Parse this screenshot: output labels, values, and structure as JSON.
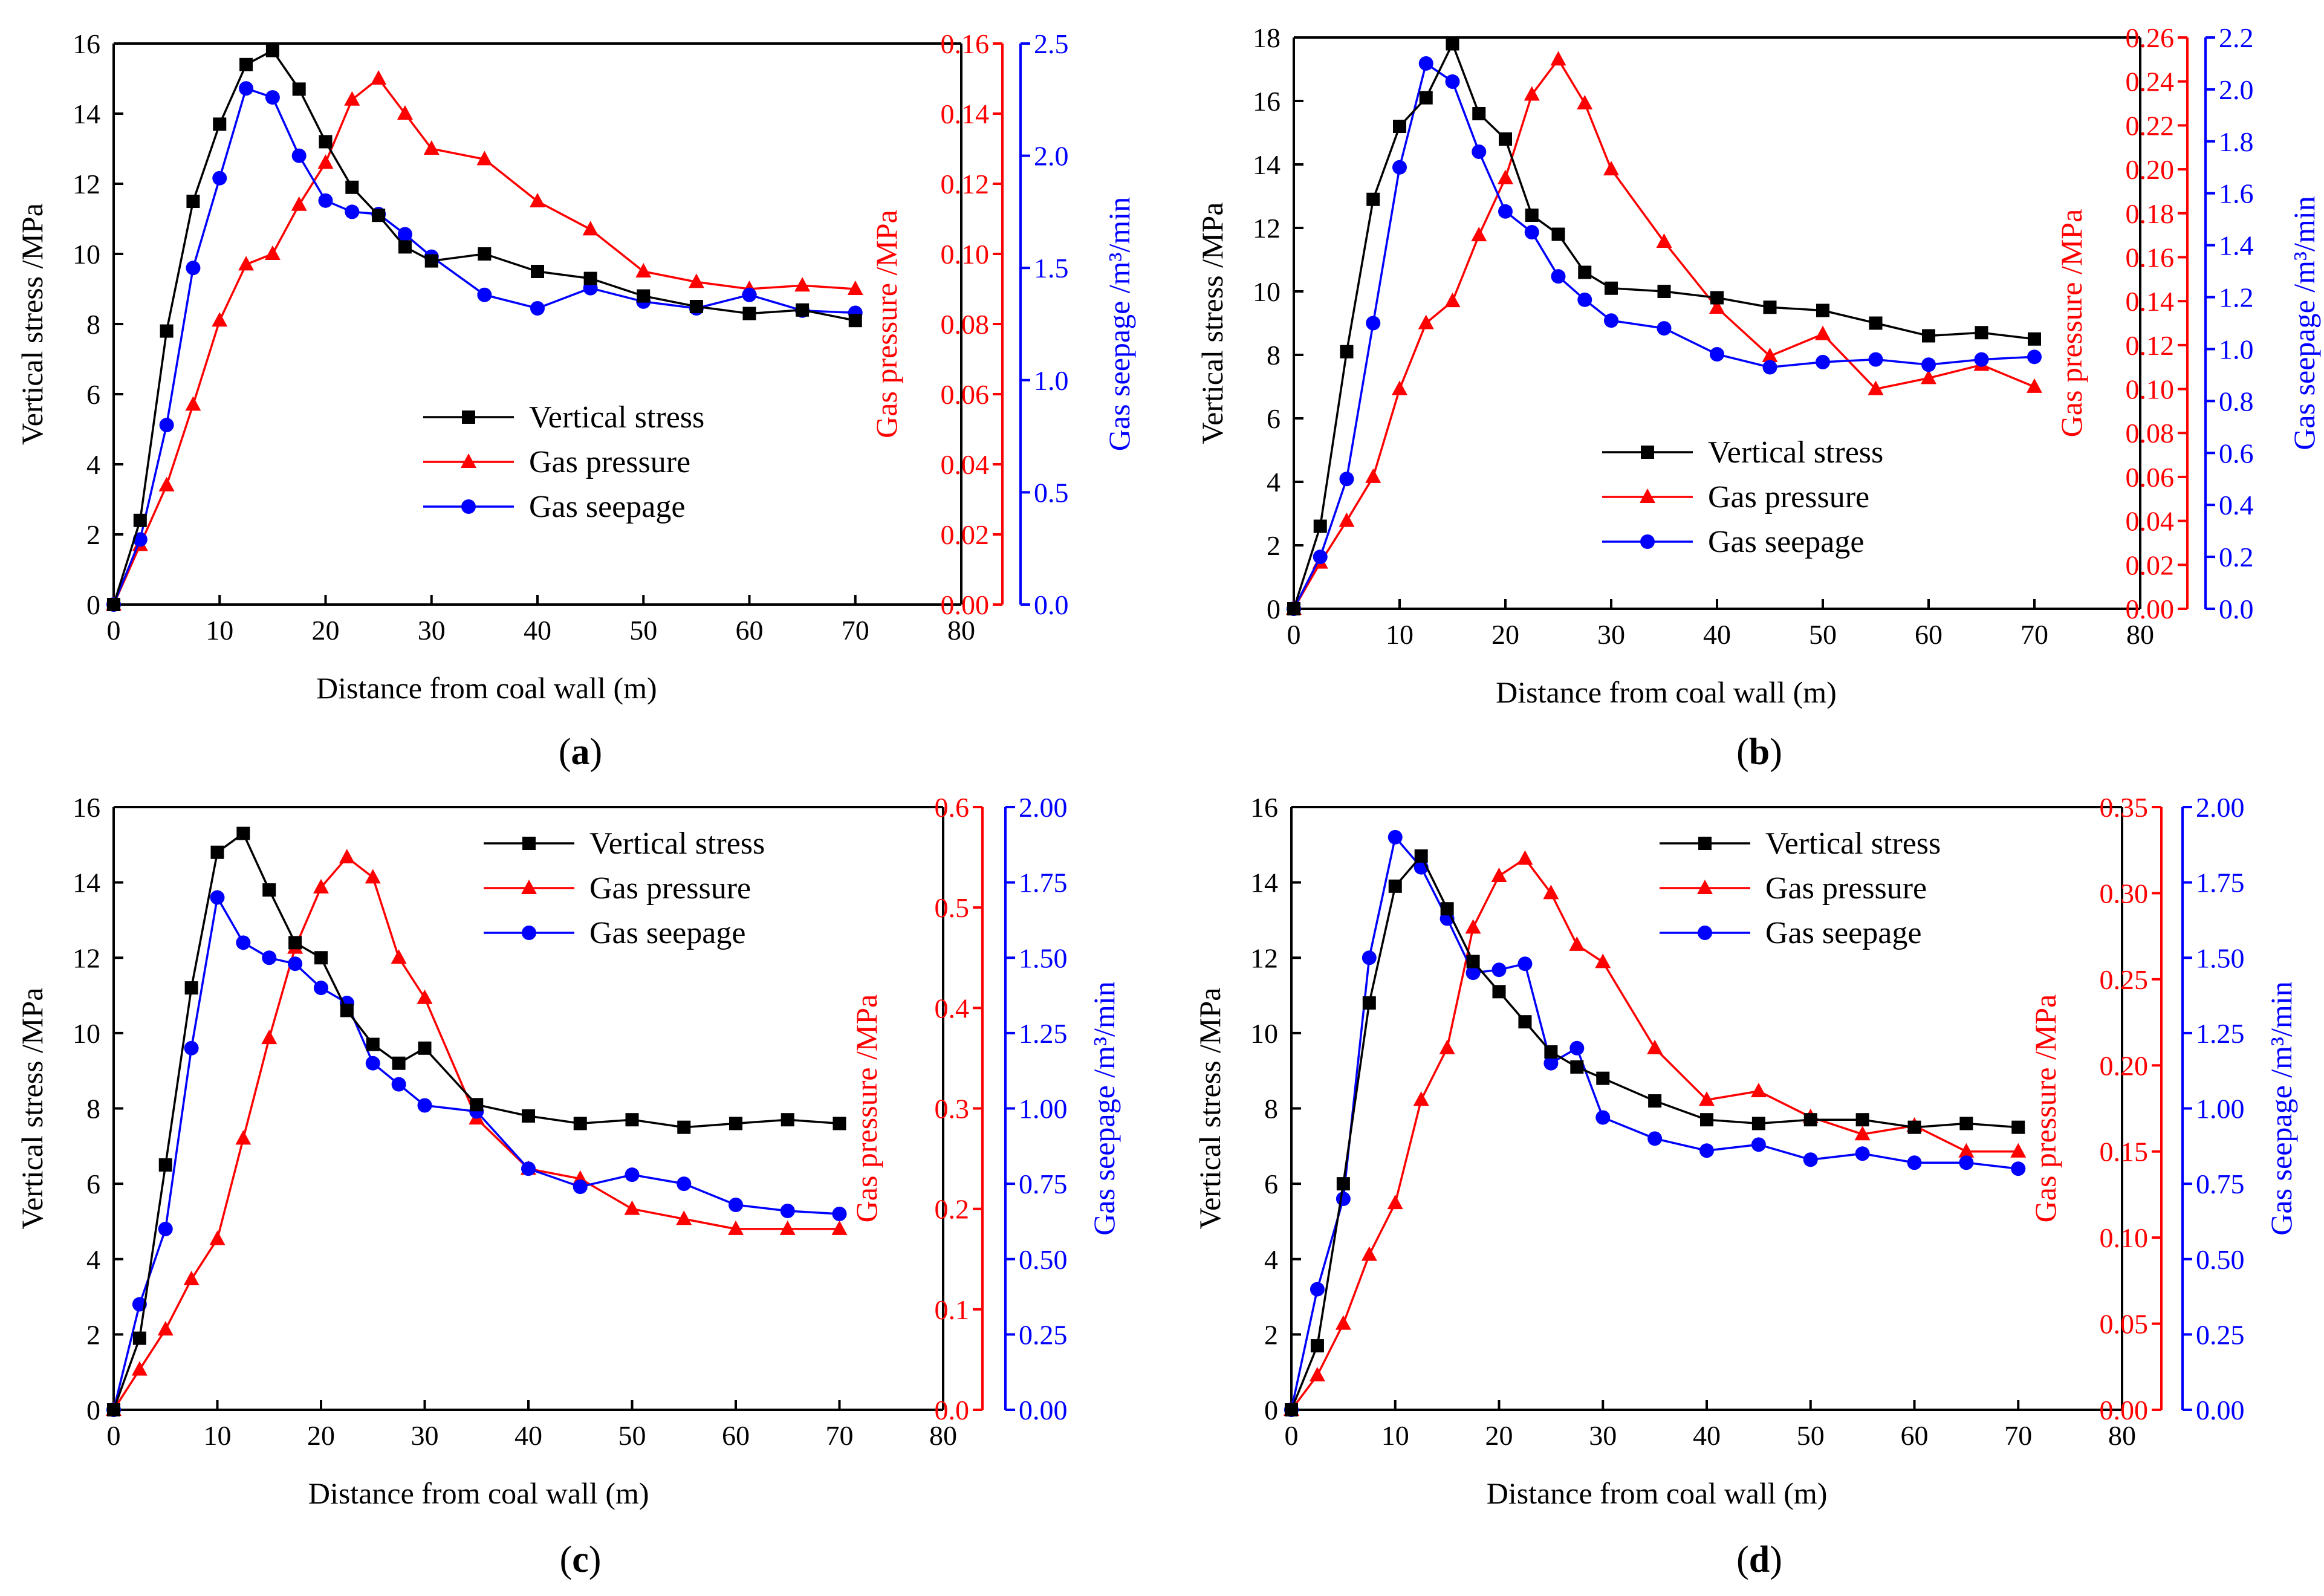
{
  "figure": {
    "panel_count": 4
  },
  "colors": {
    "stress": "#000000",
    "pressure": "#ff0000",
    "seepage": "#0000ff"
  },
  "chart_data": [
    {
      "type": "line",
      "panel_label": "a",
      "xlabel": "Distance from coal wall (m)",
      "ylabel_left": "Vertical stress /MPa",
      "ylabel_right1": "Gas pressure /MPa",
      "ylabel_right2": "Gas seepage /m³/min",
      "xlim": [
        0,
        80
      ],
      "xticks": [
        "0",
        "10",
        "20",
        "30",
        "40",
        "50",
        "60",
        "70",
        "80"
      ],
      "ylim_left": [
        0,
        16
      ],
      "yticks_left": [
        "0",
        "2",
        "4",
        "6",
        "8",
        "10",
        "12",
        "14",
        "16"
      ],
      "ylim_right1": [
        0,
        0.16
      ],
      "yticks_right1": [
        "0.00",
        "0.02",
        "0.04",
        "0.06",
        "0.08",
        "0.10",
        "0.12",
        "0.14",
        "0.16"
      ],
      "ylim_right2": [
        0,
        2.5
      ],
      "yticks_right2": [
        "0.0",
        "0.5",
        "1.0",
        "1.5",
        "2.0",
        "2.5"
      ],
      "legend_position": "center",
      "series": [
        {
          "name": "Vertical stress",
          "axis": "left",
          "marker": "square",
          "x": [
            0,
            2.5,
            5,
            7.5,
            10,
            12.5,
            15,
            17.5,
            20,
            22.5,
            25,
            27.5,
            30,
            35,
            40,
            45,
            50,
            55,
            60,
            65,
            70
          ],
          "values": [
            0,
            2.4,
            7.8,
            11.5,
            13.7,
            15.4,
            15.8,
            14.7,
            13.2,
            11.9,
            11.1,
            10.2,
            9.8,
            10.0,
            9.5,
            9.3,
            8.8,
            8.5,
            8.3,
            8.4,
            8.1
          ]
        },
        {
          "name": "Gas pressure",
          "axis": "right1",
          "marker": "triangle",
          "x": [
            0,
            2.5,
            5,
            7.5,
            10,
            12.5,
            15,
            17.5,
            20,
            22.5,
            25,
            27.5,
            30,
            35,
            40,
            45,
            50,
            55,
            60,
            65,
            70
          ],
          "values": [
            0,
            0.017,
            0.034,
            0.057,
            0.081,
            0.097,
            0.1,
            0.114,
            0.126,
            0.144,
            0.15,
            0.14,
            0.13,
            0.127,
            0.115,
            0.107,
            0.095,
            0.092,
            0.09,
            0.091,
            0.09
          ]
        },
        {
          "name": "Gas seepage",
          "axis": "right2",
          "marker": "circle",
          "x": [
            0,
            2.5,
            5,
            7.5,
            10,
            12.5,
            15,
            17.5,
            20,
            22.5,
            25,
            27.5,
            30,
            35,
            40,
            45,
            50,
            55,
            60,
            65,
            70
          ],
          "values": [
            0,
            0.29,
            0.8,
            1.5,
            1.9,
            2.3,
            2.26,
            2.0,
            1.8,
            1.75,
            1.74,
            1.65,
            1.55,
            1.38,
            1.32,
            1.41,
            1.35,
            1.32,
            1.38,
            1.31,
            1.3
          ]
        }
      ]
    },
    {
      "type": "line",
      "panel_label": "b",
      "xlabel": "Distance from coal wall (m)",
      "ylabel_left": "Vertical stress /MPa",
      "ylabel_right1": "Gas pressure /MPa",
      "ylabel_right2": "Gas seepage /m³/min",
      "xlim": [
        0,
        80
      ],
      "xticks": [
        "0",
        "10",
        "20",
        "30",
        "40",
        "50",
        "60",
        "70",
        "80"
      ],
      "ylim_left": [
        0,
        18
      ],
      "yticks_left": [
        "0",
        "2",
        "4",
        "6",
        "8",
        "10",
        "12",
        "14",
        "16",
        "18"
      ],
      "ylim_right1": [
        0,
        0.26
      ],
      "yticks_right1": [
        "0.00",
        "0.02",
        "0.04",
        "0.06",
        "0.08",
        "0.10",
        "0.12",
        "0.14",
        "0.16",
        "0.18",
        "0.20",
        "0.22",
        "0.24",
        "0.26"
      ],
      "ylim_right2": [
        0,
        2.2
      ],
      "yticks_right2": [
        "0.0",
        "0.2",
        "0.4",
        "0.6",
        "0.8",
        "1.0",
        "1.2",
        "1.4",
        "1.6",
        "1.8",
        "2.0",
        "2.2"
      ],
      "legend_position": "center-bottom",
      "series": [
        {
          "name": "Vertical stress",
          "axis": "left",
          "marker": "square",
          "x": [
            0,
            2.5,
            5,
            7.5,
            10,
            12.5,
            15,
            17.5,
            20,
            22.5,
            25,
            27.5,
            30,
            35,
            40,
            45,
            50,
            55,
            60,
            65,
            70
          ],
          "values": [
            0,
            2.6,
            8.1,
            12.9,
            15.2,
            16.1,
            17.8,
            15.6,
            14.8,
            12.4,
            11.8,
            10.6,
            10.1,
            10.0,
            9.8,
            9.5,
            9.4,
            9.0,
            8.6,
            8.7,
            8.5
          ]
        },
        {
          "name": "Gas pressure",
          "axis": "right1",
          "marker": "triangle",
          "x": [
            0,
            2.5,
            5,
            7.5,
            10,
            12.5,
            15,
            17.5,
            20,
            22.5,
            25,
            27.5,
            30,
            35,
            40,
            45,
            50,
            55,
            60,
            65,
            70
          ],
          "values": [
            0,
            0.021,
            0.04,
            0.06,
            0.1,
            0.13,
            0.14,
            0.17,
            0.196,
            0.234,
            0.25,
            0.23,
            0.2,
            0.167,
            0.137,
            0.115,
            0.125,
            0.1,
            0.105,
            0.111,
            0.101
          ]
        },
        {
          "name": "Gas seepage",
          "axis": "right2",
          "marker": "circle",
          "x": [
            0,
            2.5,
            5,
            7.5,
            10,
            12.5,
            15,
            17.5,
            20,
            22.5,
            25,
            27.5,
            30,
            35,
            40,
            45,
            50,
            55,
            60,
            65,
            70
          ],
          "values": [
            0,
            0.2,
            0.5,
            1.1,
            1.7,
            2.1,
            2.03,
            1.76,
            1.53,
            1.45,
            1.28,
            1.19,
            1.11,
            1.08,
            0.98,
            0.93,
            0.95,
            0.96,
            0.94,
            0.96,
            0.97
          ]
        }
      ]
    },
    {
      "type": "line",
      "panel_label": "c",
      "xlabel": "Distance from coal wall (m)",
      "ylabel_left": "Vertical stress /MPa",
      "ylabel_right1": "Gas pressure /MPa",
      "ylabel_right2": "Gas seepage /m³/min",
      "xlim": [
        0,
        80
      ],
      "xticks": [
        "0",
        "10",
        "20",
        "30",
        "40",
        "50",
        "60",
        "70",
        "80"
      ],
      "ylim_left": [
        0,
        16
      ],
      "yticks_left": [
        "0",
        "2",
        "4",
        "6",
        "8",
        "10",
        "12",
        "14",
        "16"
      ],
      "ylim_right1": [
        0,
        0.6
      ],
      "yticks_right1": [
        "0.0",
        "0.1",
        "0.2",
        "0.3",
        "0.4",
        "0.5",
        "0.6"
      ],
      "ylim_right2": [
        0,
        2.0
      ],
      "yticks_right2": [
        "0.00",
        "0.25",
        "0.50",
        "0.75",
        "1.00",
        "1.25",
        "1.50",
        "1.75",
        "2.00"
      ],
      "legend_position": "top-right",
      "series": [
        {
          "name": "Vertical stress",
          "axis": "left",
          "marker": "square",
          "x": [
            0,
            2.5,
            5,
            7.5,
            10,
            12.5,
            15,
            17.5,
            20,
            22.5,
            25,
            27.5,
            30,
            35,
            40,
            45,
            50,
            55,
            60,
            65,
            70
          ],
          "values": [
            0,
            1.9,
            6.5,
            11.2,
            14.8,
            15.3,
            13.8,
            12.4,
            12.0,
            10.6,
            9.7,
            9.2,
            9.6,
            8.1,
            7.8,
            7.6,
            7.7,
            7.5,
            7.6,
            7.7,
            7.6
          ]
        },
        {
          "name": "Gas pressure",
          "axis": "right1",
          "marker": "triangle",
          "x": [
            0,
            2.5,
            5,
            7.5,
            10,
            12.5,
            15,
            17.5,
            20,
            22.5,
            25,
            27.5,
            30,
            35,
            40,
            45,
            50,
            55,
            60,
            65,
            70
          ],
          "values": [
            0,
            0.04,
            0.08,
            0.13,
            0.17,
            0.27,
            0.37,
            0.46,
            0.52,
            0.55,
            0.53,
            0.45,
            0.41,
            0.29,
            0.24,
            0.23,
            0.2,
            0.19,
            0.18,
            0.18,
            0.18
          ]
        },
        {
          "name": "Gas seepage",
          "axis": "right2",
          "marker": "circle",
          "x": [
            0,
            2.5,
            5,
            7.5,
            10,
            12.5,
            15,
            17.5,
            20,
            22.5,
            25,
            27.5,
            30,
            35,
            40,
            45,
            50,
            55,
            60,
            65,
            70
          ],
          "values": [
            0,
            0.35,
            0.6,
            1.2,
            1.7,
            1.55,
            1.5,
            1.48,
            1.4,
            1.35,
            1.15,
            1.08,
            1.01,
            0.99,
            0.8,
            0.74,
            0.78,
            0.75,
            0.68,
            0.66,
            0.65
          ]
        }
      ]
    },
    {
      "type": "line",
      "panel_label": "d",
      "xlabel": "Distance from coal wall (m)",
      "ylabel_left": "Vertical stress /MPa",
      "ylabel_right1": "Gas pressure /MPa",
      "ylabel_right2": "Gas seepage /m³/min",
      "xlim": [
        0,
        80
      ],
      "xticks": [
        "0",
        "10",
        "20",
        "30",
        "40",
        "50",
        "60",
        "70",
        "80"
      ],
      "ylim_left": [
        0,
        16
      ],
      "yticks_left": [
        "0",
        "2",
        "4",
        "6",
        "8",
        "10",
        "12",
        "14",
        "16"
      ],
      "ylim_right1": [
        0,
        0.35
      ],
      "yticks_right1": [
        "0.00",
        "0.05",
        "0.10",
        "0.15",
        "0.20",
        "0.25",
        "0.30",
        "0.35"
      ],
      "ylim_right2": [
        0,
        2.0
      ],
      "yticks_right2": [
        "0.00",
        "0.25",
        "0.50",
        "0.75",
        "1.00",
        "1.25",
        "1.50",
        "1.75",
        "2.00"
      ],
      "legend_position": "top-right",
      "series": [
        {
          "name": "Vertical stress",
          "axis": "left",
          "marker": "square",
          "x": [
            0,
            2.5,
            5,
            7.5,
            10,
            12.5,
            15,
            17.5,
            20,
            22.5,
            25,
            27.5,
            30,
            35,
            40,
            45,
            50,
            55,
            60,
            65,
            70
          ],
          "values": [
            0,
            1.7,
            6.0,
            10.8,
            13.9,
            14.7,
            13.3,
            11.9,
            11.1,
            10.3,
            9.5,
            9.1,
            8.8,
            8.2,
            7.7,
            7.6,
            7.7,
            7.7,
            7.5,
            7.6,
            7.5
          ]
        },
        {
          "name": "Gas pressure",
          "axis": "right1",
          "marker": "triangle",
          "x": [
            0,
            2.5,
            5,
            7.5,
            10,
            12.5,
            15,
            17.5,
            20,
            22.5,
            25,
            27.5,
            30,
            35,
            40,
            45,
            50,
            55,
            60,
            65,
            70
          ],
          "values": [
            0,
            0.02,
            0.05,
            0.09,
            0.12,
            0.18,
            0.21,
            0.28,
            0.31,
            0.32,
            0.3,
            0.27,
            0.26,
            0.21,
            0.18,
            0.185,
            0.17,
            0.16,
            0.165,
            0.15,
            0.15
          ]
        },
        {
          "name": "Gas seepage",
          "axis": "right2",
          "marker": "circle",
          "x": [
            0,
            2.5,
            5,
            7.5,
            10,
            12.5,
            15,
            17.5,
            20,
            22.5,
            25,
            27.5,
            30,
            35,
            40,
            45,
            50,
            55,
            60,
            65,
            70
          ],
          "values": [
            0,
            0.4,
            0.7,
            1.5,
            1.9,
            1.8,
            1.63,
            1.45,
            1.46,
            1.48,
            1.15,
            1.2,
            0.97,
            0.9,
            0.86,
            0.88,
            0.83,
            0.85,
            0.82,
            0.82,
            0.8
          ]
        }
      ]
    }
  ]
}
